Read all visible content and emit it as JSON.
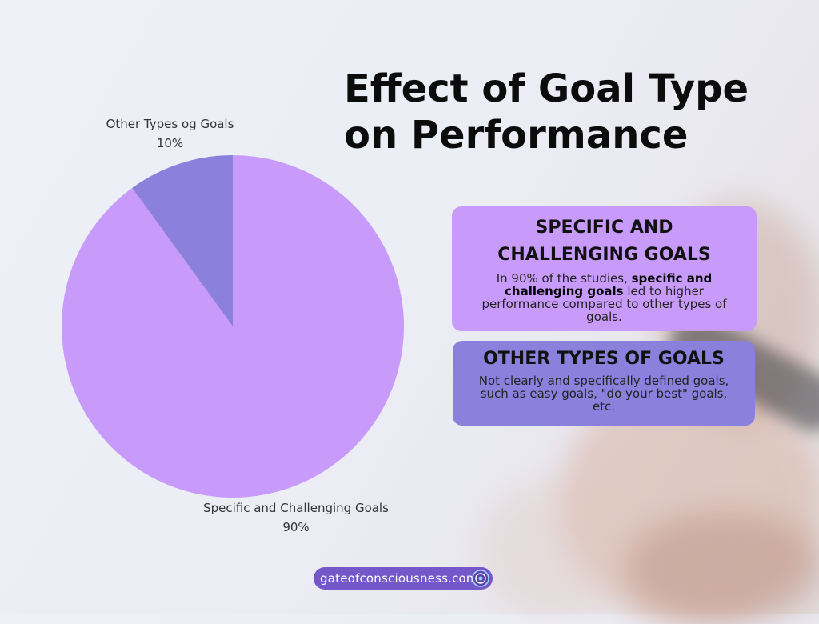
{
  "title": "Effect of Goal Type on Performance",
  "chart_data": {
    "type": "pie",
    "slices": [
      {
        "label": "Specific and Challenging Goals",
        "value": 90,
        "value_label": "90%",
        "color": "#c89bfb"
      },
      {
        "label": "Other Types og Goals",
        "value": 10,
        "value_label": "10%",
        "color": "#8b80dc"
      }
    ]
  },
  "cards": {
    "specific": {
      "heading": "SPECIFIC AND CHALLENGING GOALS",
      "text_before": "In 90% of the studies, ",
      "text_bold": "specific and challenging goals",
      "text_after": " led to higher performance compared to other types of goals."
    },
    "other": {
      "heading": "OTHER TYPES OF GOALS",
      "text": "Not clearly and specifically defined goals, such as easy goals, \"do your best\" goals, etc."
    }
  },
  "footer": {
    "site": "gateofconsciousness.com",
    "icon": "spiral-logo-icon"
  }
}
